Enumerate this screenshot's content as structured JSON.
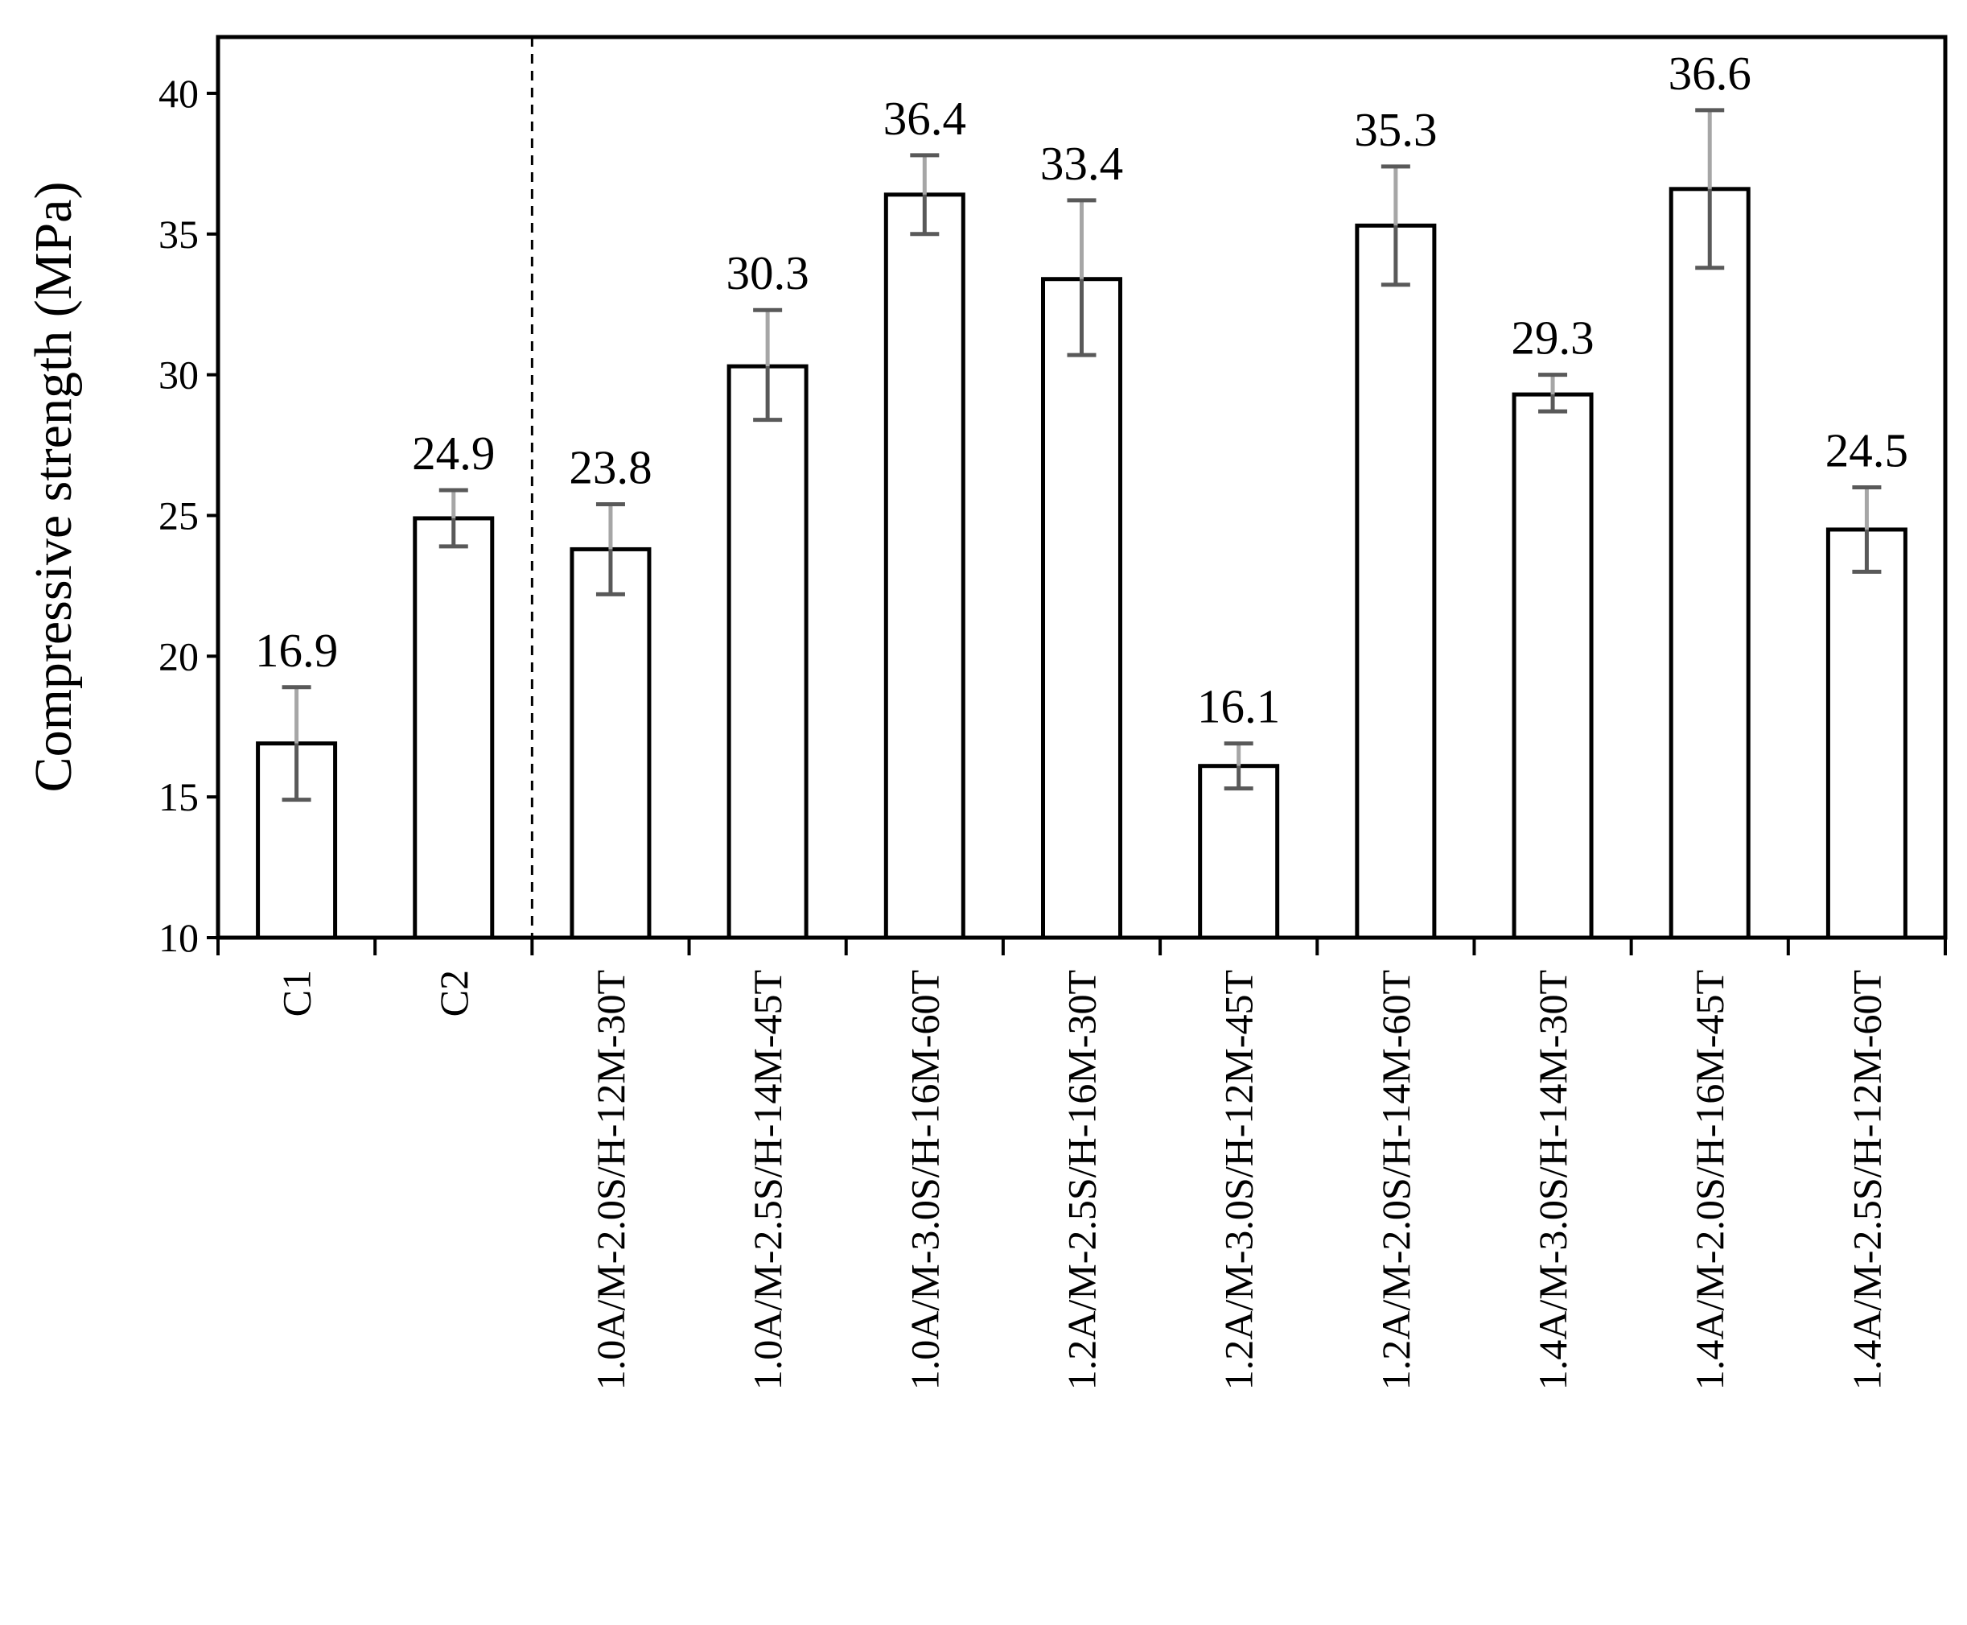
{
  "chart_data": {
    "type": "bar",
    "ylabel": "Compressive strength (MPa)",
    "xlabel": "",
    "title": "",
    "ylim": [
      10,
      42
    ],
    "yticks": [
      10,
      15,
      20,
      25,
      30,
      35,
      40
    ],
    "grid": false,
    "legend": "none",
    "separator_after_category": "C2",
    "categories": [
      "C1",
      "C2",
      "1.0A/M-2.0S/H-12M-30T",
      "1.0A/M-2.5S/H-14M-45T",
      "1.0A/M-3.0S/H-16M-60T",
      "1.2A/M-2.5S/H-16M-30T",
      "1.2A/M-3.0S/H-12M-45T",
      "1.2A/M-2.0S/H-14M-60T",
      "1.4A/M-3.0S/H-14M-30T",
      "1.4A/M-2.0S/H-16M-45T",
      "1.4A/M-2.5S/H-12M-60T"
    ],
    "values": [
      16.9,
      24.9,
      23.8,
      30.3,
      36.4,
      33.4,
      16.1,
      35.3,
      29.3,
      36.6,
      24.5
    ],
    "value_labels": [
      "16.9",
      "24.9",
      "23.8",
      "30.3",
      "36.4",
      "33.4",
      "16.1",
      "35.3",
      "29.3",
      "36.6",
      "24.5"
    ],
    "error_low": [
      14.9,
      23.9,
      22.2,
      28.4,
      35.0,
      30.7,
      15.3,
      33.2,
      28.7,
      33.8,
      23.0
    ],
    "error_high": [
      18.9,
      25.9,
      25.4,
      32.3,
      37.8,
      36.2,
      16.9,
      37.4,
      30.0,
      39.4,
      26.0
    ],
    "colors": {
      "bar_fill": "#ffffff",
      "bar_stroke": "#000000",
      "error_bar_lower": "#595959",
      "error_bar_upper": "#a6a6a6"
    }
  }
}
